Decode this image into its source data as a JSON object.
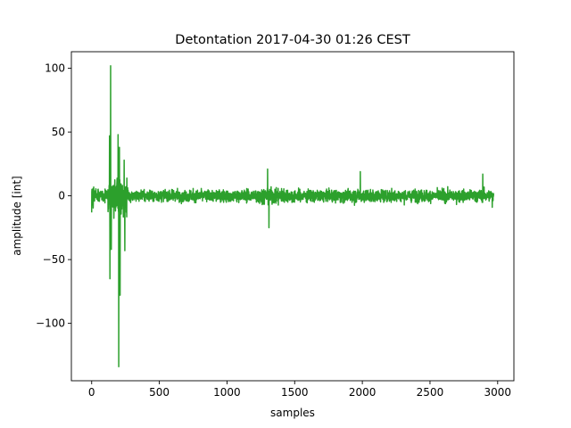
{
  "chart_data": {
    "type": "line",
    "title": "Detontation 2017-04-30 01:26 CEST",
    "xlabel": "samples",
    "ylabel": "amplitude [int]",
    "xlim": [
      -150,
      3120
    ],
    "ylim": [
      -145,
      113
    ],
    "xticks": [
      0,
      500,
      1000,
      1500,
      2000,
      2500,
      3000
    ],
    "yticks": [
      -100,
      -50,
      0,
      50,
      100
    ],
    "xtick_labels": [
      "0",
      "500",
      "1000",
      "1500",
      "2000",
      "2500",
      "3000"
    ],
    "ytick_labels": [
      "−100",
      "−50",
      "0",
      "50",
      "100"
    ],
    "grid": false,
    "legend": "none",
    "series": [
      {
        "color": "#2ca02c",
        "x_start": 0,
        "x_end": 2970,
        "peaks": [
          {
            "x": 0,
            "y": 12
          },
          {
            "x": 0,
            "y": -13
          },
          {
            "x": 132,
            "y": 47
          },
          {
            "x": 135,
            "y": -65
          },
          {
            "x": 140,
            "y": 102
          },
          {
            "x": 145,
            "y": -42
          },
          {
            "x": 195,
            "y": 48
          },
          {
            "x": 200,
            "y": -134
          },
          {
            "x": 205,
            "y": 38
          },
          {
            "x": 210,
            "y": -78
          },
          {
            "x": 240,
            "y": 28
          },
          {
            "x": 245,
            "y": -43
          },
          {
            "x": 1300,
            "y": 21
          },
          {
            "x": 1310,
            "y": -25
          },
          {
            "x": 1985,
            "y": 19
          },
          {
            "x": 2890,
            "y": 17
          },
          {
            "x": 2960,
            "y": -9
          }
        ]
      }
    ]
  }
}
